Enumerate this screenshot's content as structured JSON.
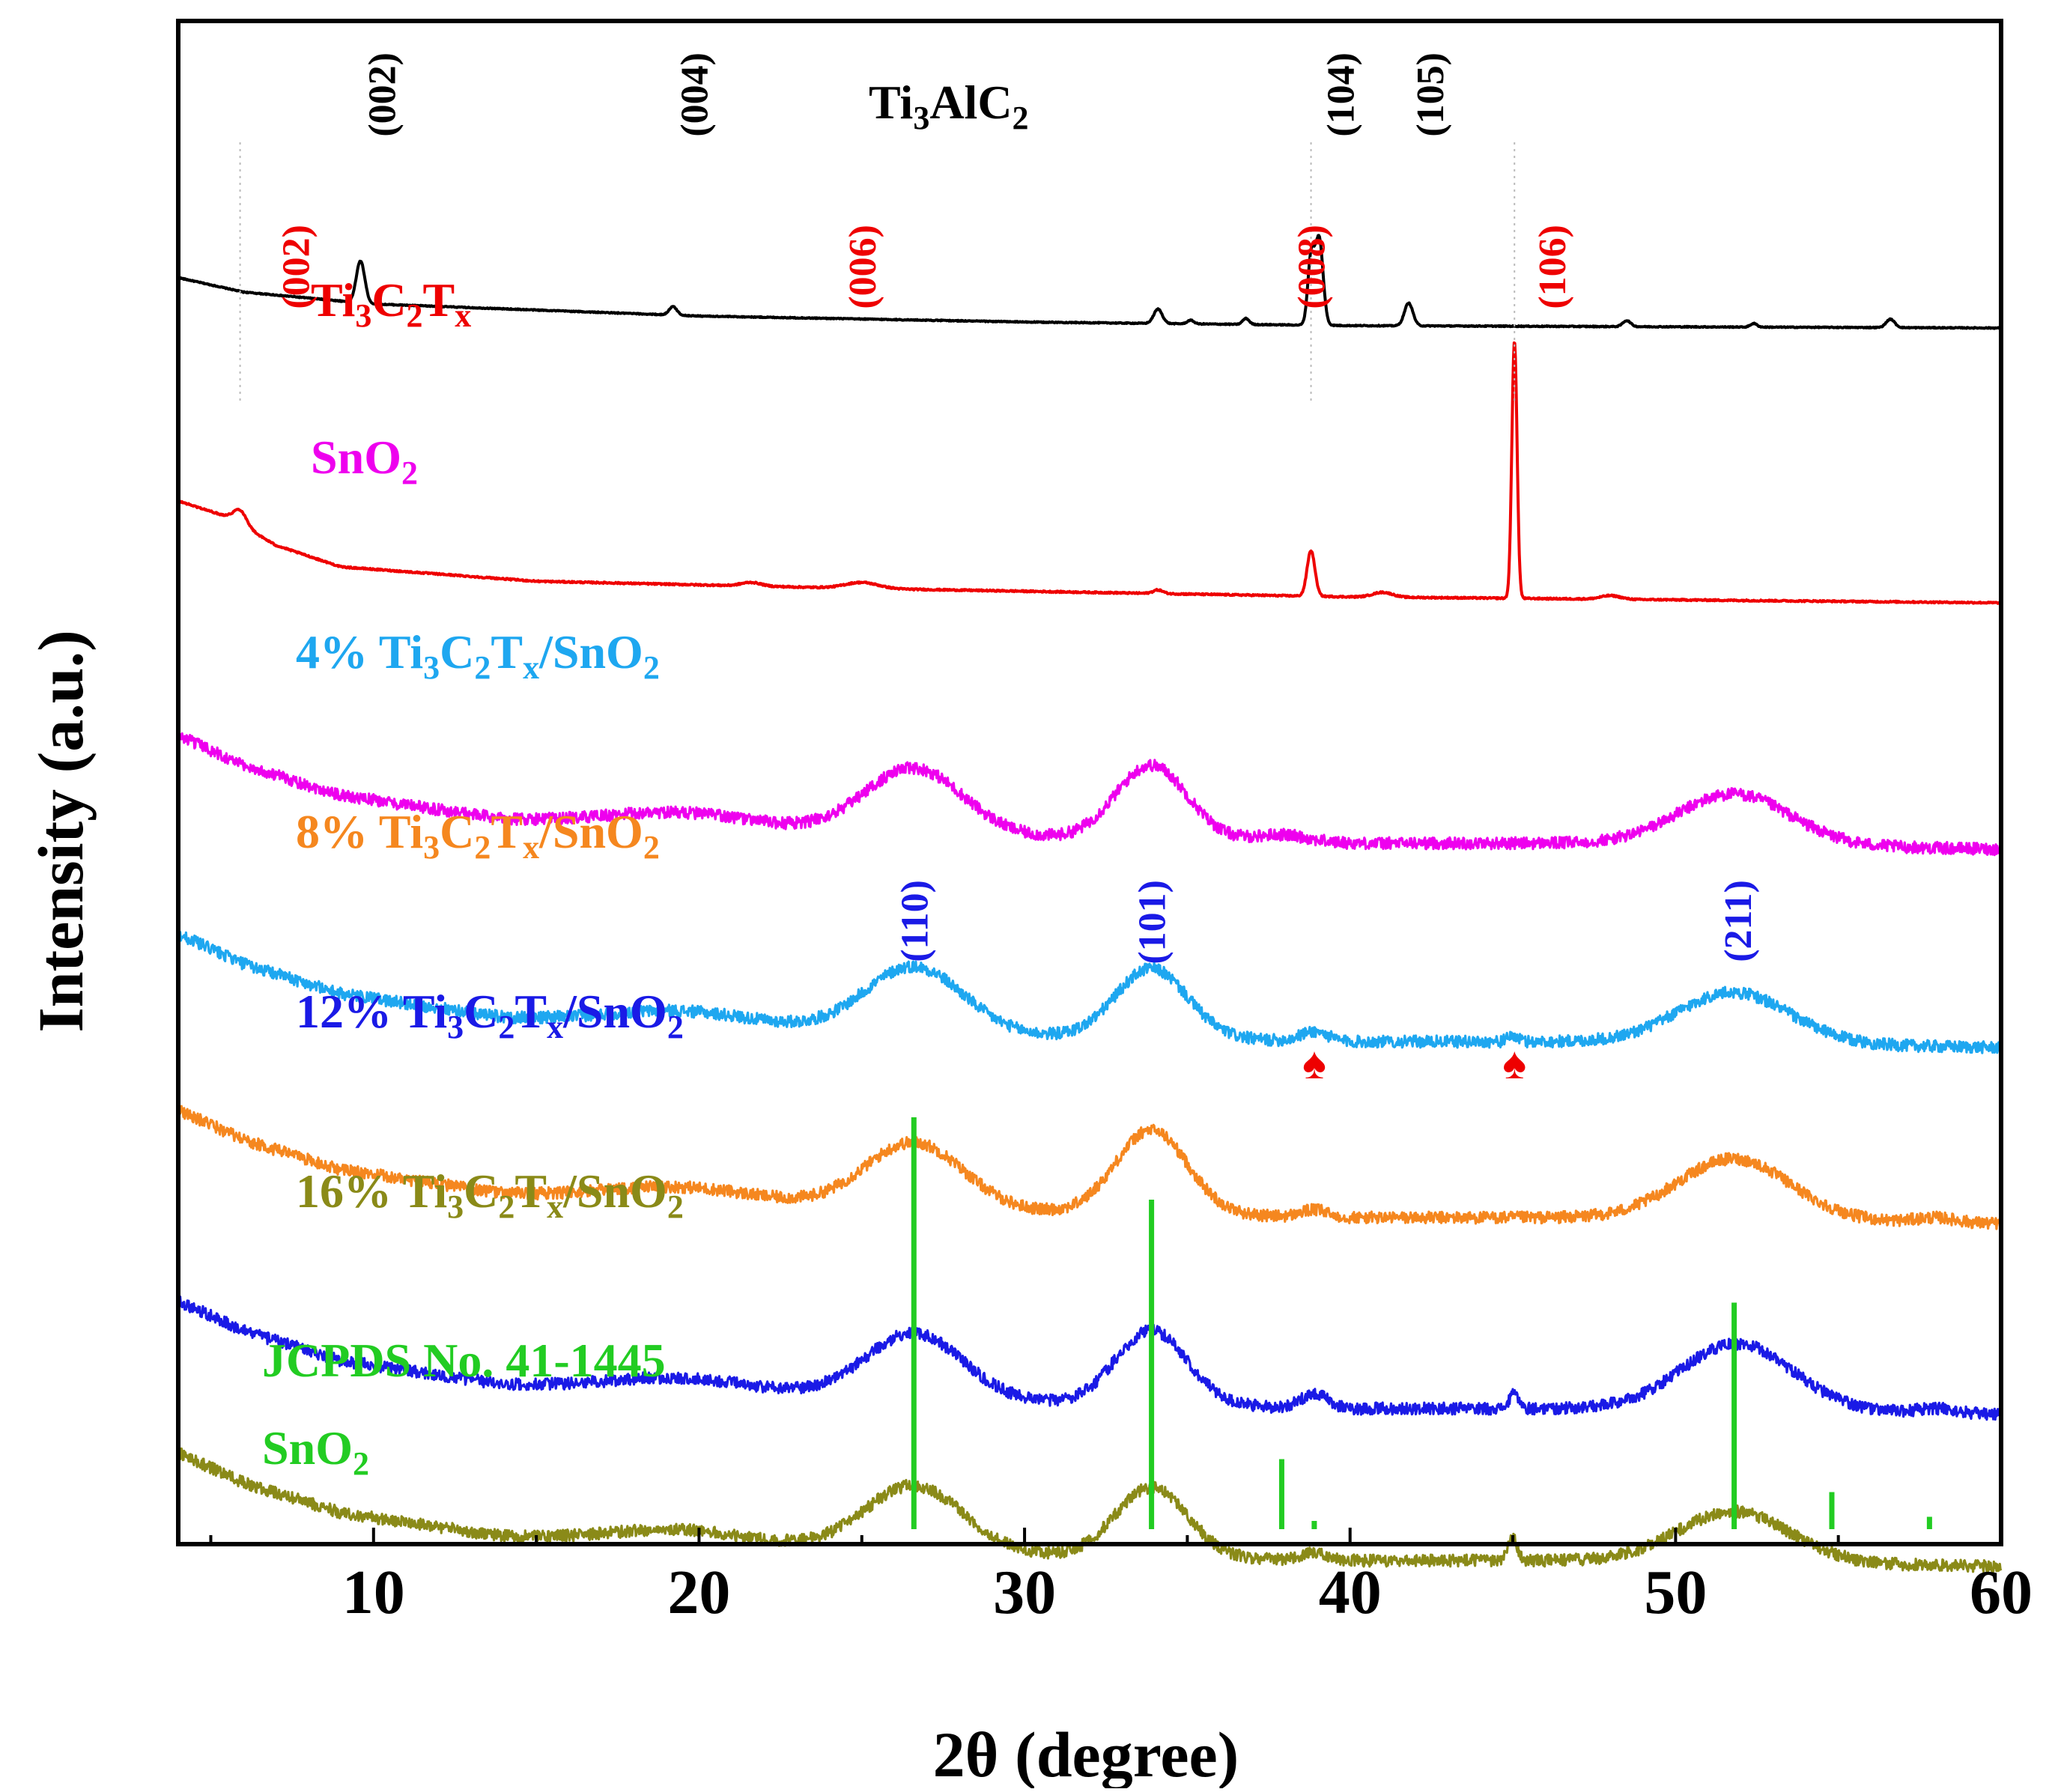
{
  "chart_data": {
    "type": "line",
    "title": "",
    "xlabel": "2θ (degree)",
    "ylabel": "Intensity (a.u.)",
    "xlim": [
      4,
      60
    ],
    "x_ticks": [
      10,
      20,
      30,
      40,
      50,
      60
    ],
    "x_tick_labels": [
      "10",
      "20",
      "30",
      "40",
      "50",
      "60"
    ],
    "y_unit": "a.u.",
    "series": [
      {
        "name": "Ti3AlC2",
        "label_parts": [
          [
            "Ti",
            ""
          ],
          [
            "3",
            "sub"
          ],
          [
            "AlC",
            ""
          ],
          [
            "2",
            "sub"
          ]
        ],
        "color": "#000000",
        "baseline": [
          [
            4,
            1.62
          ],
          [
            6,
            1.5
          ],
          [
            10,
            1.4
          ],
          [
            20,
            1.3
          ],
          [
            30,
            1.25
          ],
          [
            40,
            1.22
          ],
          [
            60,
            1.2
          ]
        ],
        "noise": 0.004,
        "peaks": [
          {
            "x": 9.6,
            "h": 0.35,
            "w": 0.13
          },
          {
            "x": 19.2,
            "h": 0.07,
            "w": 0.12
          },
          {
            "x": 34.1,
            "h": 0.12,
            "w": 0.13
          },
          {
            "x": 35.1,
            "h": 0.03,
            "w": 0.1
          },
          {
            "x": 36.8,
            "h": 0.05,
            "w": 0.1
          },
          {
            "x": 38.8,
            "h": 0.55,
            "w": 0.1
          },
          {
            "x": 39.05,
            "h": 0.72,
            "w": 0.12
          },
          {
            "x": 41.8,
            "h": 0.19,
            "w": 0.13
          },
          {
            "x": 48.5,
            "h": 0.05,
            "w": 0.12
          },
          {
            "x": 52.4,
            "h": 0.03,
            "w": 0.1
          },
          {
            "x": 56.6,
            "h": 0.07,
            "w": 0.13
          }
        ],
        "peak_labels": [
          {
            "x": 9.6,
            "text": "(002)"
          },
          {
            "x": 19.2,
            "text": "(004)"
          },
          {
            "x": 39.05,
            "text": "(104)"
          },
          {
            "x": 41.8,
            "text": "(105)"
          }
        ]
      },
      {
        "name": "Ti3C2Tx",
        "label_parts": [
          [
            "Ti",
            ""
          ],
          [
            "3",
            "sub"
          ],
          [
            "C",
            ""
          ],
          [
            "2",
            "sub"
          ],
          [
            "T",
            ""
          ],
          [
            "x",
            "sub"
          ]
        ],
        "color": "#ee0000",
        "baseline": [
          [
            4,
            1.85
          ],
          [
            5.5,
            1.72
          ],
          [
            7,
            1.48
          ],
          [
            9,
            1.3
          ],
          [
            15,
            1.18
          ],
          [
            25,
            1.12
          ],
          [
            40,
            1.05
          ],
          [
            60,
            1.0
          ]
        ],
        "noise": 0.006,
        "peaks": [
          {
            "x": 5.9,
            "h": 0.12,
            "w": 0.2
          },
          {
            "x": 21.6,
            "h": 0.03,
            "w": 0.3
          },
          {
            "x": 25.0,
            "h": 0.05,
            "w": 0.5
          },
          {
            "x": 34.1,
            "h": 0.03,
            "w": 0.15
          },
          {
            "x": 38.8,
            "h": 0.38,
            "w": 0.12
          },
          {
            "x": 41.0,
            "h": 0.04,
            "w": 0.3
          },
          {
            "x": 45.05,
            "h": 2.15,
            "w": 0.08
          },
          {
            "x": 48.0,
            "h": 0.03,
            "w": 0.3
          }
        ],
        "peak_labels": [
          {
            "x": 7.6,
            "text": "(002)"
          },
          {
            "x": 25.0,
            "text": "(006)"
          },
          {
            "x": 38.8,
            "text": "(008)"
          },
          {
            "x": 46.2,
            "text": "(106)"
          }
        ]
      },
      {
        "name": "SnO2",
        "label_parts": [
          [
            "SnO",
            ""
          ],
          [
            "2",
            "sub"
          ]
        ],
        "color": "#ee00ee",
        "baseline": [
          [
            4,
            2.05
          ],
          [
            6,
            1.8
          ],
          [
            9,
            1.55
          ],
          [
            14,
            1.35
          ],
          [
            20,
            1.28
          ],
          [
            30,
            1.2
          ],
          [
            40,
            1.15
          ],
          [
            50,
            1.15
          ],
          [
            60,
            1.1
          ]
        ],
        "noise": 0.05,
        "peaks": [
          {
            "x": 19.5,
            "h": 0.12,
            "w": 2.2
          },
          {
            "x": 26.6,
            "h": 0.55,
            "w": 1.5
          },
          {
            "x": 33.9,
            "h": 0.62,
            "w": 1.1
          },
          {
            "x": 37.9,
            "h": 0.06,
            "w": 0.8
          },
          {
            "x": 51.8,
            "h": 0.42,
            "w": 1.7
          }
        ]
      },
      {
        "name": "4% Ti3C2Tx/SnO2",
        "label_parts": [
          [
            "4% Ti",
            ""
          ],
          [
            "3",
            "sub"
          ],
          [
            "C",
            ""
          ],
          [
            "2",
            "sub"
          ],
          [
            "T",
            ""
          ],
          [
            "x",
            "sub"
          ],
          [
            "/SnO",
            ""
          ],
          [
            "2",
            "sub"
          ]
        ],
        "color": "#1ea7f0",
        "baseline": [
          [
            4,
            2.05
          ],
          [
            6,
            1.8
          ],
          [
            9,
            1.55
          ],
          [
            14,
            1.35
          ],
          [
            20,
            1.28
          ],
          [
            30,
            1.2
          ],
          [
            40,
            1.15
          ],
          [
            50,
            1.15
          ],
          [
            60,
            1.1
          ]
        ],
        "noise": 0.05,
        "peaks": [
          {
            "x": 19.5,
            "h": 0.12,
            "w": 2.2
          },
          {
            "x": 26.6,
            "h": 0.55,
            "w": 1.5
          },
          {
            "x": 33.9,
            "h": 0.58,
            "w": 1.1
          },
          {
            "x": 38.9,
            "h": 0.08,
            "w": 0.4
          },
          {
            "x": 45.0,
            "h": 0.05,
            "w": 0.15
          },
          {
            "x": 51.8,
            "h": 0.42,
            "w": 1.7
          }
        ]
      },
      {
        "name": "8% Ti3C2Tx/SnO2",
        "label_parts": [
          [
            "8% Ti",
            ""
          ],
          [
            "3",
            "sub"
          ],
          [
            "C",
            ""
          ],
          [
            "2",
            "sub"
          ],
          [
            "T",
            ""
          ],
          [
            "x",
            "sub"
          ],
          [
            "/SnO",
            ""
          ],
          [
            "2",
            "sub"
          ]
        ],
        "color": "#f5871f",
        "baseline": [
          [
            4,
            2.05
          ],
          [
            6,
            1.8
          ],
          [
            9,
            1.55
          ],
          [
            14,
            1.35
          ],
          [
            20,
            1.28
          ],
          [
            30,
            1.2
          ],
          [
            40,
            1.15
          ],
          [
            50,
            1.15
          ],
          [
            60,
            1.1
          ]
        ],
        "noise": 0.05,
        "peaks": [
          {
            "x": 19.5,
            "h": 0.12,
            "w": 2.2
          },
          {
            "x": 26.6,
            "h": 0.55,
            "w": 1.5
          },
          {
            "x": 33.9,
            "h": 0.7,
            "w": 1.1
          },
          {
            "x": 38.9,
            "h": 0.06,
            "w": 0.4
          },
          {
            "x": 51.8,
            "h": 0.5,
            "w": 1.7
          },
          {
            "x": 58.0,
            "h": 0.04,
            "w": 0.6
          }
        ]
      },
      {
        "name": "12% Ti3C2Tx/SnO2",
        "label_parts": [
          [
            "12% Ti",
            ""
          ],
          [
            "3",
            "sub"
          ],
          [
            "C",
            ""
          ],
          [
            "2",
            "sub"
          ],
          [
            "T",
            ""
          ],
          [
            "x",
            "sub"
          ],
          [
            "/SnO",
            ""
          ],
          [
            "2",
            "sub"
          ]
        ],
        "color": "#1a1ae6",
        "baseline": [
          [
            4,
            2.05
          ],
          [
            6,
            1.8
          ],
          [
            9,
            1.55
          ],
          [
            14,
            1.35
          ],
          [
            20,
            1.28
          ],
          [
            30,
            1.2
          ],
          [
            40,
            1.15
          ],
          [
            50,
            1.15
          ],
          [
            60,
            1.1
          ]
        ],
        "noise": 0.05,
        "peaks": [
          {
            "x": 19.5,
            "h": 0.12,
            "w": 2.2
          },
          {
            "x": 26.6,
            "h": 0.55,
            "w": 1.5
          },
          {
            "x": 33.9,
            "h": 0.62,
            "w": 1.1
          },
          {
            "x": 38.9,
            "h": 0.12,
            "w": 0.4
          },
          {
            "x": 45.05,
            "h": 0.12,
            "w": 0.15
          },
          {
            "x": 51.9,
            "h": 0.55,
            "w": 1.7
          },
          {
            "x": 58.0,
            "h": 0.04,
            "w": 0.6
          }
        ],
        "peak_labels": [
          {
            "x": 26.6,
            "text": "(110)"
          },
          {
            "x": 33.9,
            "text": "(101)"
          },
          {
            "x": 51.9,
            "text": "(211)"
          }
        ],
        "markers": [
          {
            "x": 38.9,
            "symbol": "♠",
            "color": "#ee0000"
          },
          {
            "x": 45.05,
            "symbol": "♠",
            "color": "#ee0000"
          }
        ]
      },
      {
        "name": "16% Ti3C2Tx/SnO2",
        "label_parts": [
          [
            "16% Ti",
            ""
          ],
          [
            "3",
            "sub"
          ],
          [
            "C",
            ""
          ],
          [
            "2",
            "sub"
          ],
          [
            "T",
            ""
          ],
          [
            "x",
            "sub"
          ],
          [
            "/SnO",
            ""
          ],
          [
            "2",
            "sub"
          ]
        ],
        "color": "#8a8a18",
        "baseline": [
          [
            4,
            2.05
          ],
          [
            6,
            1.8
          ],
          [
            9,
            1.55
          ],
          [
            14,
            1.35
          ],
          [
            20,
            1.28
          ],
          [
            30,
            1.2
          ],
          [
            40,
            1.15
          ],
          [
            50,
            1.15
          ],
          [
            60,
            1.1
          ]
        ],
        "noise": 0.05,
        "peaks": [
          {
            "x": 19.5,
            "h": 0.12,
            "w": 2.2
          },
          {
            "x": 26.6,
            "h": 0.55,
            "w": 1.5
          },
          {
            "x": 33.9,
            "h": 0.58,
            "w": 1.1
          },
          {
            "x": 38.9,
            "h": 0.06,
            "w": 0.4
          },
          {
            "x": 45.0,
            "h": 0.18,
            "w": 0.15
          },
          {
            "x": 51.8,
            "h": 0.42,
            "w": 1.7
          }
        ]
      }
    ],
    "reference": {
      "name": "JCPDS No. 41-1445 SnO2",
      "line1": "JCPDS No. 41-1445",
      "line2_parts": [
        [
          "SnO",
          ""
        ],
        [
          "2",
          "sub"
        ]
      ],
      "color": "#22cc22",
      "x": [
        26.6,
        33.9,
        37.9,
        38.9,
        51.8,
        54.8,
        57.8
      ],
      "intensity": [
        100,
        80,
        17,
        2,
        55,
        9,
        3
      ]
    }
  }
}
